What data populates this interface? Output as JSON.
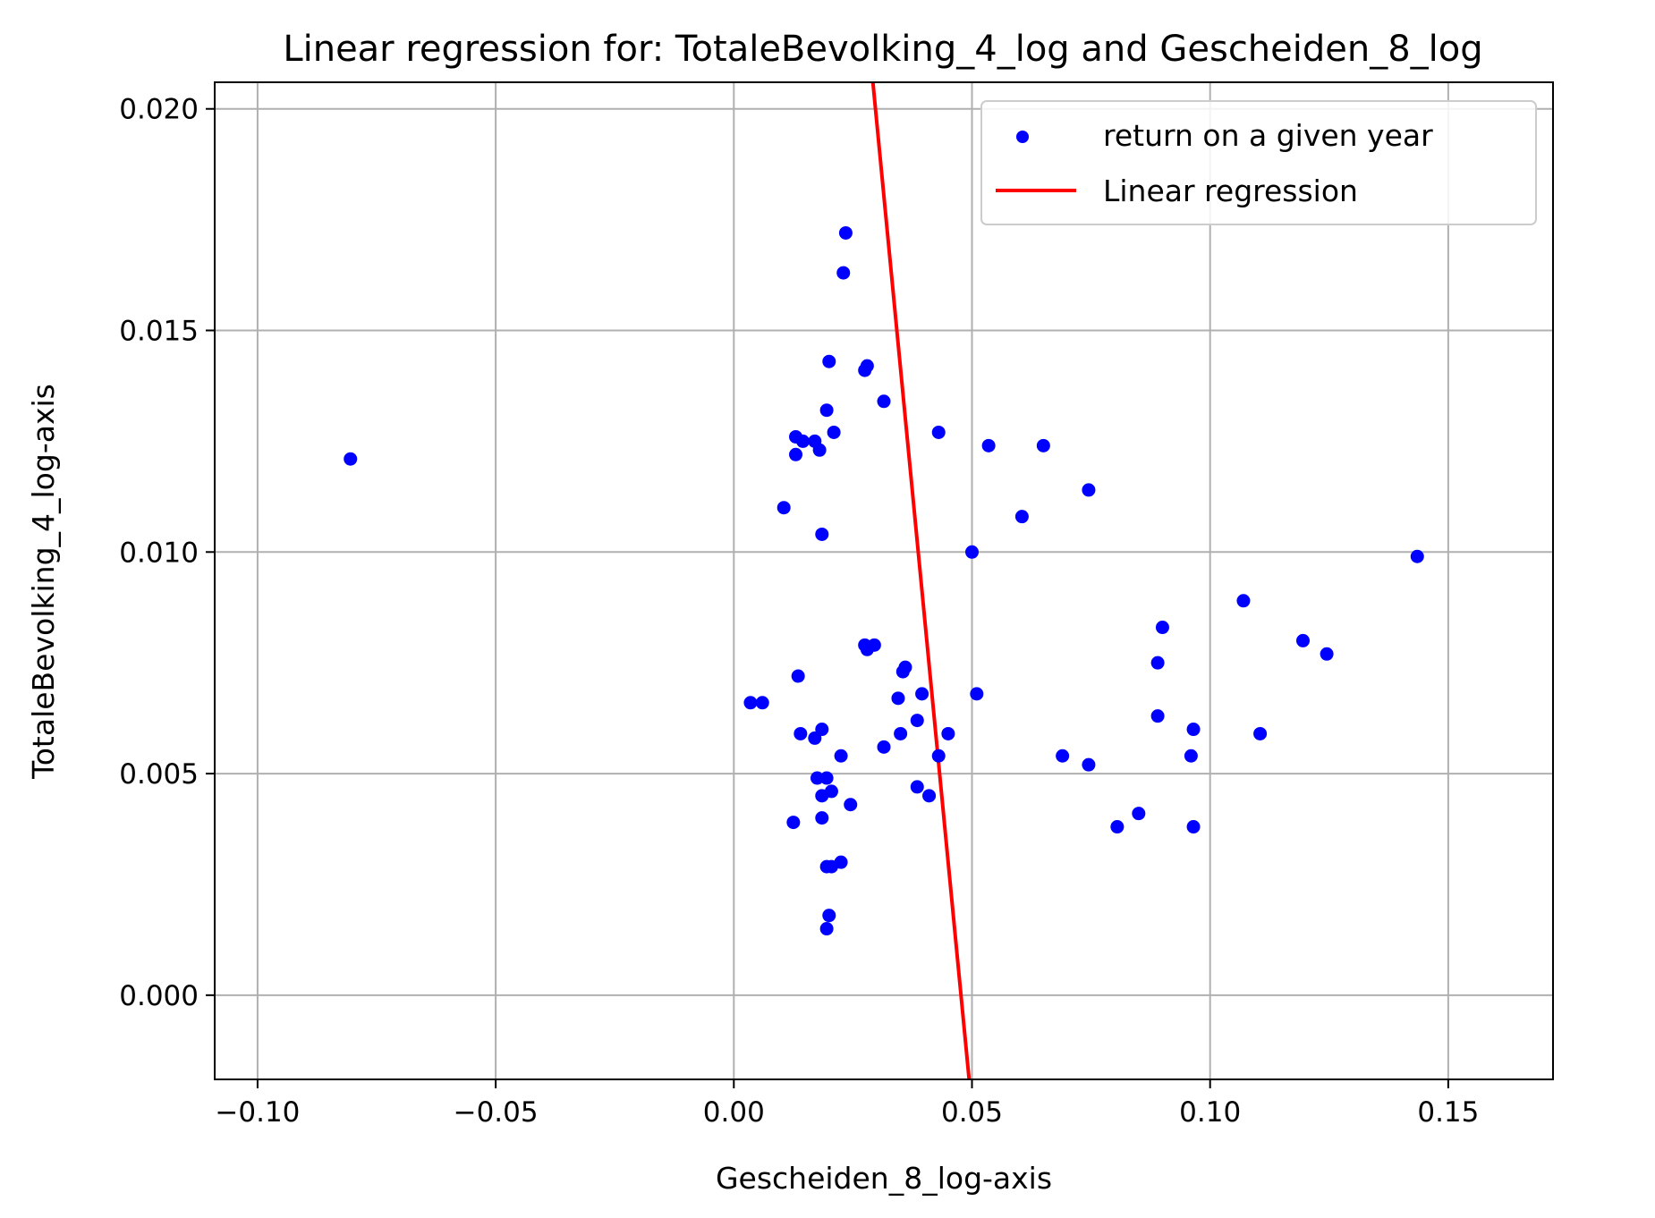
{
  "chart_data": {
    "type": "scatter",
    "title": "Linear regression for: TotaleBevolking_4_log and Gescheiden_8_log",
    "xlabel": "Gescheiden_8_log-axis",
    "ylabel": "TotaleBevolking_4_log-axis",
    "xlim": [
      -0.109,
      0.172
    ],
    "ylim": [
      -0.0019,
      0.0206
    ],
    "x_ticks": [
      -0.1,
      -0.05,
      0.0,
      0.05,
      0.1,
      0.15
    ],
    "x_tick_labels": [
      "−0.10",
      "−0.05",
      "0.00",
      "0.05",
      "0.10",
      "0.15"
    ],
    "y_ticks": [
      0.0,
      0.005,
      0.01,
      0.015,
      0.02
    ],
    "y_tick_labels": [
      "0.000",
      "0.005",
      "0.010",
      "0.015",
      "0.020"
    ],
    "grid": true,
    "legend_position": "upper-right",
    "series": [
      {
        "name": "return on a given year",
        "kind": "scatter",
        "color": "#0000ff",
        "points": [
          [
            -0.0805,
            0.0121
          ],
          [
            0.0235,
            0.0172
          ],
          [
            0.023,
            0.0163
          ],
          [
            0.02,
            0.0143
          ],
          [
            0.028,
            0.0142
          ],
          [
            0.0275,
            0.0141
          ],
          [
            0.0195,
            0.0132
          ],
          [
            0.0315,
            0.0134
          ],
          [
            0.021,
            0.0127
          ],
          [
            0.043,
            0.0127
          ],
          [
            0.013,
            0.0126
          ],
          [
            0.0145,
            0.0125
          ],
          [
            0.017,
            0.0125
          ],
          [
            0.013,
            0.0122
          ],
          [
            0.018,
            0.0123
          ],
          [
            0.0535,
            0.0124
          ],
          [
            0.065,
            0.0124
          ],
          [
            0.0105,
            0.011
          ],
          [
            0.0745,
            0.0114
          ],
          [
            0.0605,
            0.0108
          ],
          [
            0.0185,
            0.0104
          ],
          [
            0.05,
            0.01
          ],
          [
            0.1435,
            0.0099
          ],
          [
            0.107,
            0.0089
          ],
          [
            0.09,
            0.0083
          ],
          [
            0.1195,
            0.008
          ],
          [
            0.1245,
            0.0077
          ],
          [
            0.0275,
            0.0079
          ],
          [
            0.0295,
            0.0079
          ],
          [
            0.028,
            0.0078
          ],
          [
            0.089,
            0.0075
          ],
          [
            0.036,
            0.0074
          ],
          [
            0.0355,
            0.0073
          ],
          [
            0.0135,
            0.0072
          ],
          [
            0.0395,
            0.0068
          ],
          [
            0.051,
            0.0068
          ],
          [
            0.0345,
            0.0067
          ],
          [
            0.0035,
            0.0066
          ],
          [
            0.006,
            0.0066
          ],
          [
            0.089,
            0.0063
          ],
          [
            0.0385,
            0.0062
          ],
          [
            0.0185,
            0.006
          ],
          [
            0.0965,
            0.006
          ],
          [
            0.014,
            0.0059
          ],
          [
            0.017,
            0.0058
          ],
          [
            0.035,
            0.0059
          ],
          [
            0.045,
            0.0059
          ],
          [
            0.1105,
            0.0059
          ],
          [
            0.0315,
            0.0056
          ],
          [
            0.0225,
            0.0054
          ],
          [
            0.043,
            0.0054
          ],
          [
            0.069,
            0.0054
          ],
          [
            0.096,
            0.0054
          ],
          [
            0.0745,
            0.0052
          ],
          [
            0.0175,
            0.0049
          ],
          [
            0.0195,
            0.0049
          ],
          [
            0.0385,
            0.0047
          ],
          [
            0.0185,
            0.0045
          ],
          [
            0.0205,
            0.0046
          ],
          [
            0.041,
            0.0045
          ],
          [
            0.0245,
            0.0043
          ],
          [
            0.085,
            0.0041
          ],
          [
            0.0185,
            0.004
          ],
          [
            0.0125,
            0.0039
          ],
          [
            0.0965,
            0.0038
          ],
          [
            0.0805,
            0.0038
          ],
          [
            0.0195,
            0.0029
          ],
          [
            0.0205,
            0.0029
          ],
          [
            0.0225,
            0.003
          ],
          [
            0.02,
            0.0018
          ],
          [
            0.0195,
            0.0015
          ]
        ]
      },
      {
        "name": "Linear regression",
        "kind": "line",
        "color": "#ff0000",
        "points": [
          [
            0.0292,
            0.0206
          ],
          [
            0.0494,
            -0.0019
          ]
        ]
      }
    ]
  }
}
